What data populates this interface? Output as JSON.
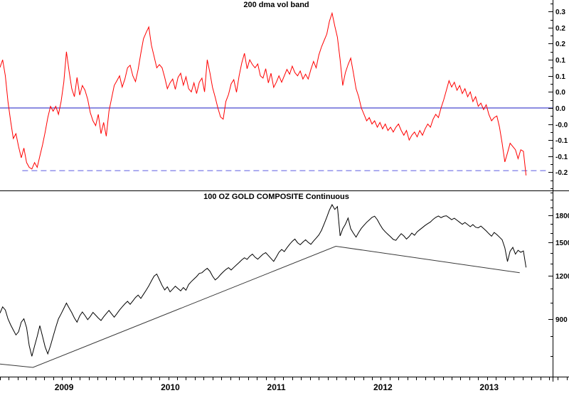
{
  "top_panel": {
    "title": "200 dma vol band"
  },
  "bottom_panel": {
    "title": "100 OZ GOLD COMPOSITE Continuous"
  },
  "colors": {
    "vol_band_line": "#ff0000",
    "gold_line": "#000000",
    "zero_line": "#8888e0",
    "support_dashed_line": "#5a5ae0",
    "trendline": "#383838",
    "axis": "#000000"
  },
  "chart_data": {
    "type": "line",
    "x_axis": {
      "start_year": 2008.5,
      "end_year": 2013.7,
      "step_years": 0.025,
      "year_ticks": [
        2009,
        2010,
        2011,
        2012,
        2013
      ],
      "year_labels": [
        "2009",
        "2010",
        "2011",
        "2012",
        "2013"
      ],
      "minor_tick_interval_months": 1
    },
    "panels": [
      {
        "title": "200 dma vol band",
        "y_axis": {
          "scale": "linear",
          "min": -0.259,
          "max": 0.336,
          "ticks": [
            {
              "v": 0.3,
              "label": "0.3"
            },
            {
              "v": 0.25,
              "label": "0.2"
            },
            {
              "v": 0.2,
              "label": "0.2"
            },
            {
              "v": 0.15,
              "label": "0.1"
            },
            {
              "v": 0.1,
              "label": "0.1"
            },
            {
              "v": 0.05,
              "label": "0.0"
            },
            {
              "v": 0.0,
              "label": "0.0"
            },
            {
              "v": -0.05,
              "label": "-0.0"
            },
            {
              "v": -0.1,
              "label": "-0.1"
            },
            {
              "v": -0.15,
              "label": "-0.1"
            },
            {
              "v": -0.2,
              "label": "-0.2"
            }
          ],
          "minor_ticks": [
            0.325,
            0.275,
            0.225,
            0.175,
            0.125,
            0.075,
            0.025,
            -0.025,
            -0.075,
            -0.125,
            -0.175,
            -0.225,
            -0.25
          ]
        },
        "ref_lines": [
          {
            "name": "zero-line",
            "value": 0.0,
            "style": "solid",
            "width": 2,
            "t_start": 2008.5,
            "t_end": 2013.7
          },
          {
            "name": "support-dashed-line",
            "value": -0.195,
            "style": "dashed",
            "width": 1,
            "t_start": 2008.71,
            "t_end": 2013.65
          }
        ],
        "series": [
          {
            "name": "200 dma vol band",
            "color_key": "vol_band_line",
            "values": [
              0.126,
              0.15,
              0.1,
              0.02,
              -0.04,
              -0.095,
              -0.08,
              -0.12,
              -0.155,
              -0.125,
              -0.17,
              -0.185,
              -0.19,
              -0.17,
              -0.185,
              -0.15,
              -0.115,
              -0.075,
              -0.03,
              0.005,
              -0.01,
              0.005,
              -0.02,
              0.02,
              0.08,
              0.175,
              0.115,
              0.06,
              0.035,
              0.095,
              0.04,
              0.07,
              0.055,
              0.027,
              -0.015,
              -0.04,
              -0.055,
              -0.02,
              -0.08,
              -0.045,
              -0.088,
              -0.01,
              0.03,
              0.07,
              0.085,
              0.1,
              0.065,
              0.09,
              0.125,
              0.133,
              0.1,
              0.082,
              0.12,
              0.17,
              0.215,
              0.235,
              0.252,
              0.195,
              0.16,
              0.125,
              0.135,
              0.125,
              0.095,
              0.06,
              0.078,
              0.09,
              0.058,
              0.095,
              0.108,
              0.071,
              0.097,
              0.06,
              0.05,
              0.078,
              0.045,
              0.08,
              0.093,
              0.05,
              0.15,
              0.11,
              0.064,
              0.033,
              0.0,
              -0.028,
              -0.035,
              0.02,
              0.042,
              0.075,
              0.088,
              0.049,
              0.1,
              0.14,
              0.17,
              0.122,
              0.15,
              0.135,
              0.125,
              0.137,
              0.1,
              0.093,
              0.122,
              0.078,
              0.108,
              0.064,
              0.08,
              0.1,
              0.08,
              0.1,
              0.12,
              0.105,
              0.13,
              0.11,
              0.1,
              0.115,
              0.09,
              0.105,
              0.09,
              0.12,
              0.145,
              0.125,
              0.165,
              0.19,
              0.21,
              0.23,
              0.27,
              0.295,
              0.255,
              0.22,
              0.15,
              0.07,
              0.11,
              0.135,
              0.155,
              0.11,
              0.06,
              0.035,
              0.0,
              -0.02,
              -0.04,
              -0.03,
              -0.05,
              -0.04,
              -0.06,
              -0.045,
              -0.065,
              -0.05,
              -0.07,
              -0.06,
              -0.075,
              -0.06,
              -0.05,
              -0.07,
              -0.085,
              -0.07,
              -0.1,
              -0.085,
              -0.075,
              -0.09,
              -0.07,
              -0.085,
              -0.065,
              -0.05,
              -0.06,
              -0.035,
              -0.02,
              -0.03,
              0.0,
              0.025,
              0.055,
              0.085,
              0.065,
              0.08,
              0.055,
              0.07,
              0.045,
              0.06,
              0.035,
              0.05,
              0.02,
              0.035,
              0.005,
              0.015,
              -0.005,
              0.01,
              -0.02,
              -0.04,
              -0.03,
              -0.025,
              -0.06,
              -0.11,
              -0.168,
              -0.14,
              -0.11,
              -0.12,
              -0.13,
              -0.158,
              -0.13,
              -0.135,
              -0.21
            ]
          }
        ]
      },
      {
        "title": "100 OZ GOLD COMPOSITE Continuous",
        "y_axis": {
          "scale": "log",
          "top": 2116,
          "bottom": 611,
          "ticks": [
            {
              "v": 1800,
              "label": "1800"
            },
            {
              "v": 1500,
              "label": "1500"
            },
            {
              "v": 1200,
              "label": "1200"
            },
            {
              "v": 900,
              "label": "900"
            }
          ],
          "minor_ticks": [
            2100,
            2000,
            1900,
            1700,
            1600,
            1400,
            1300,
            1100,
            1000,
            800,
            700
          ]
        },
        "trendline": {
          "name": "trendline",
          "points": [
            [
              2008.5,
              665
            ],
            [
              2008.81,
              650
            ],
            [
              2011.66,
              1463
            ],
            [
              2013.39,
              1225
            ]
          ]
        },
        "series": [
          {
            "name": "100 OZ GOLD COMPOSITE Continuous",
            "color_key": "gold_line",
            "values": [
              935,
              975,
              955,
              900,
              865,
              835,
              808,
              825,
              880,
              900,
              848,
              752,
              700,
              750,
              800,
              860,
              800,
              745,
              712,
              752,
              800,
              850,
              900,
              930,
              965,
              1000,
              968,
              938,
              905,
              880,
              918,
              942,
              920,
              895,
              915,
              940,
              922,
              905,
              890,
              912,
              932,
              952,
              930,
              910,
              932,
              955,
              975,
              995,
              1012,
              992,
              1015,
              1038,
              1055,
              1032,
              1060,
              1090,
              1122,
              1160,
              1198,
              1215,
              1170,
              1125,
              1092,
              1115,
              1078,
              1098,
              1120,
              1102,
              1085,
              1110,
              1090,
              1132,
              1155,
              1175,
              1195,
              1220,
              1225,
              1245,
              1262,
              1238,
              1198,
              1168,
              1185,
              1210,
              1232,
              1252,
              1268,
              1248,
              1270,
              1292,
              1312,
              1335,
              1355,
              1340,
              1368,
              1388,
              1360,
              1342,
              1365,
              1388,
              1402,
              1375,
              1348,
              1322,
              1362,
              1405,
              1432,
              1412,
              1448,
              1482,
              1512,
              1535,
              1498,
              1478,
              1505,
              1528,
              1502,
              1482,
              1515,
              1545,
              1578,
              1628,
              1698,
              1778,
              1865,
              1933,
              1872,
              1908,
              1568,
              1645,
              1695,
              1768,
              1645,
              1598,
              1555,
              1605,
              1650,
              1685,
              1718,
              1745,
              1775,
              1790,
              1748,
              1692,
              1645,
              1612,
              1585,
              1560,
              1532,
              1522,
              1558,
              1592,
              1568,
              1535,
              1562,
              1598,
              1575,
              1612,
              1635,
              1658,
              1682,
              1702,
              1722,
              1752,
              1775,
              1792,
              1772,
              1788,
              1795,
              1772,
              1748,
              1765,
              1742,
              1718,
              1695,
              1715,
              1692,
              1668,
              1692,
              1662,
              1655,
              1675,
              1648,
              1622,
              1592,
              1565,
              1605,
              1582,
              1555,
              1528,
              1448,
              1321,
              1415,
              1452,
              1388,
              1424,
              1405,
              1418,
              1270
            ]
          }
        ]
      }
    ]
  }
}
